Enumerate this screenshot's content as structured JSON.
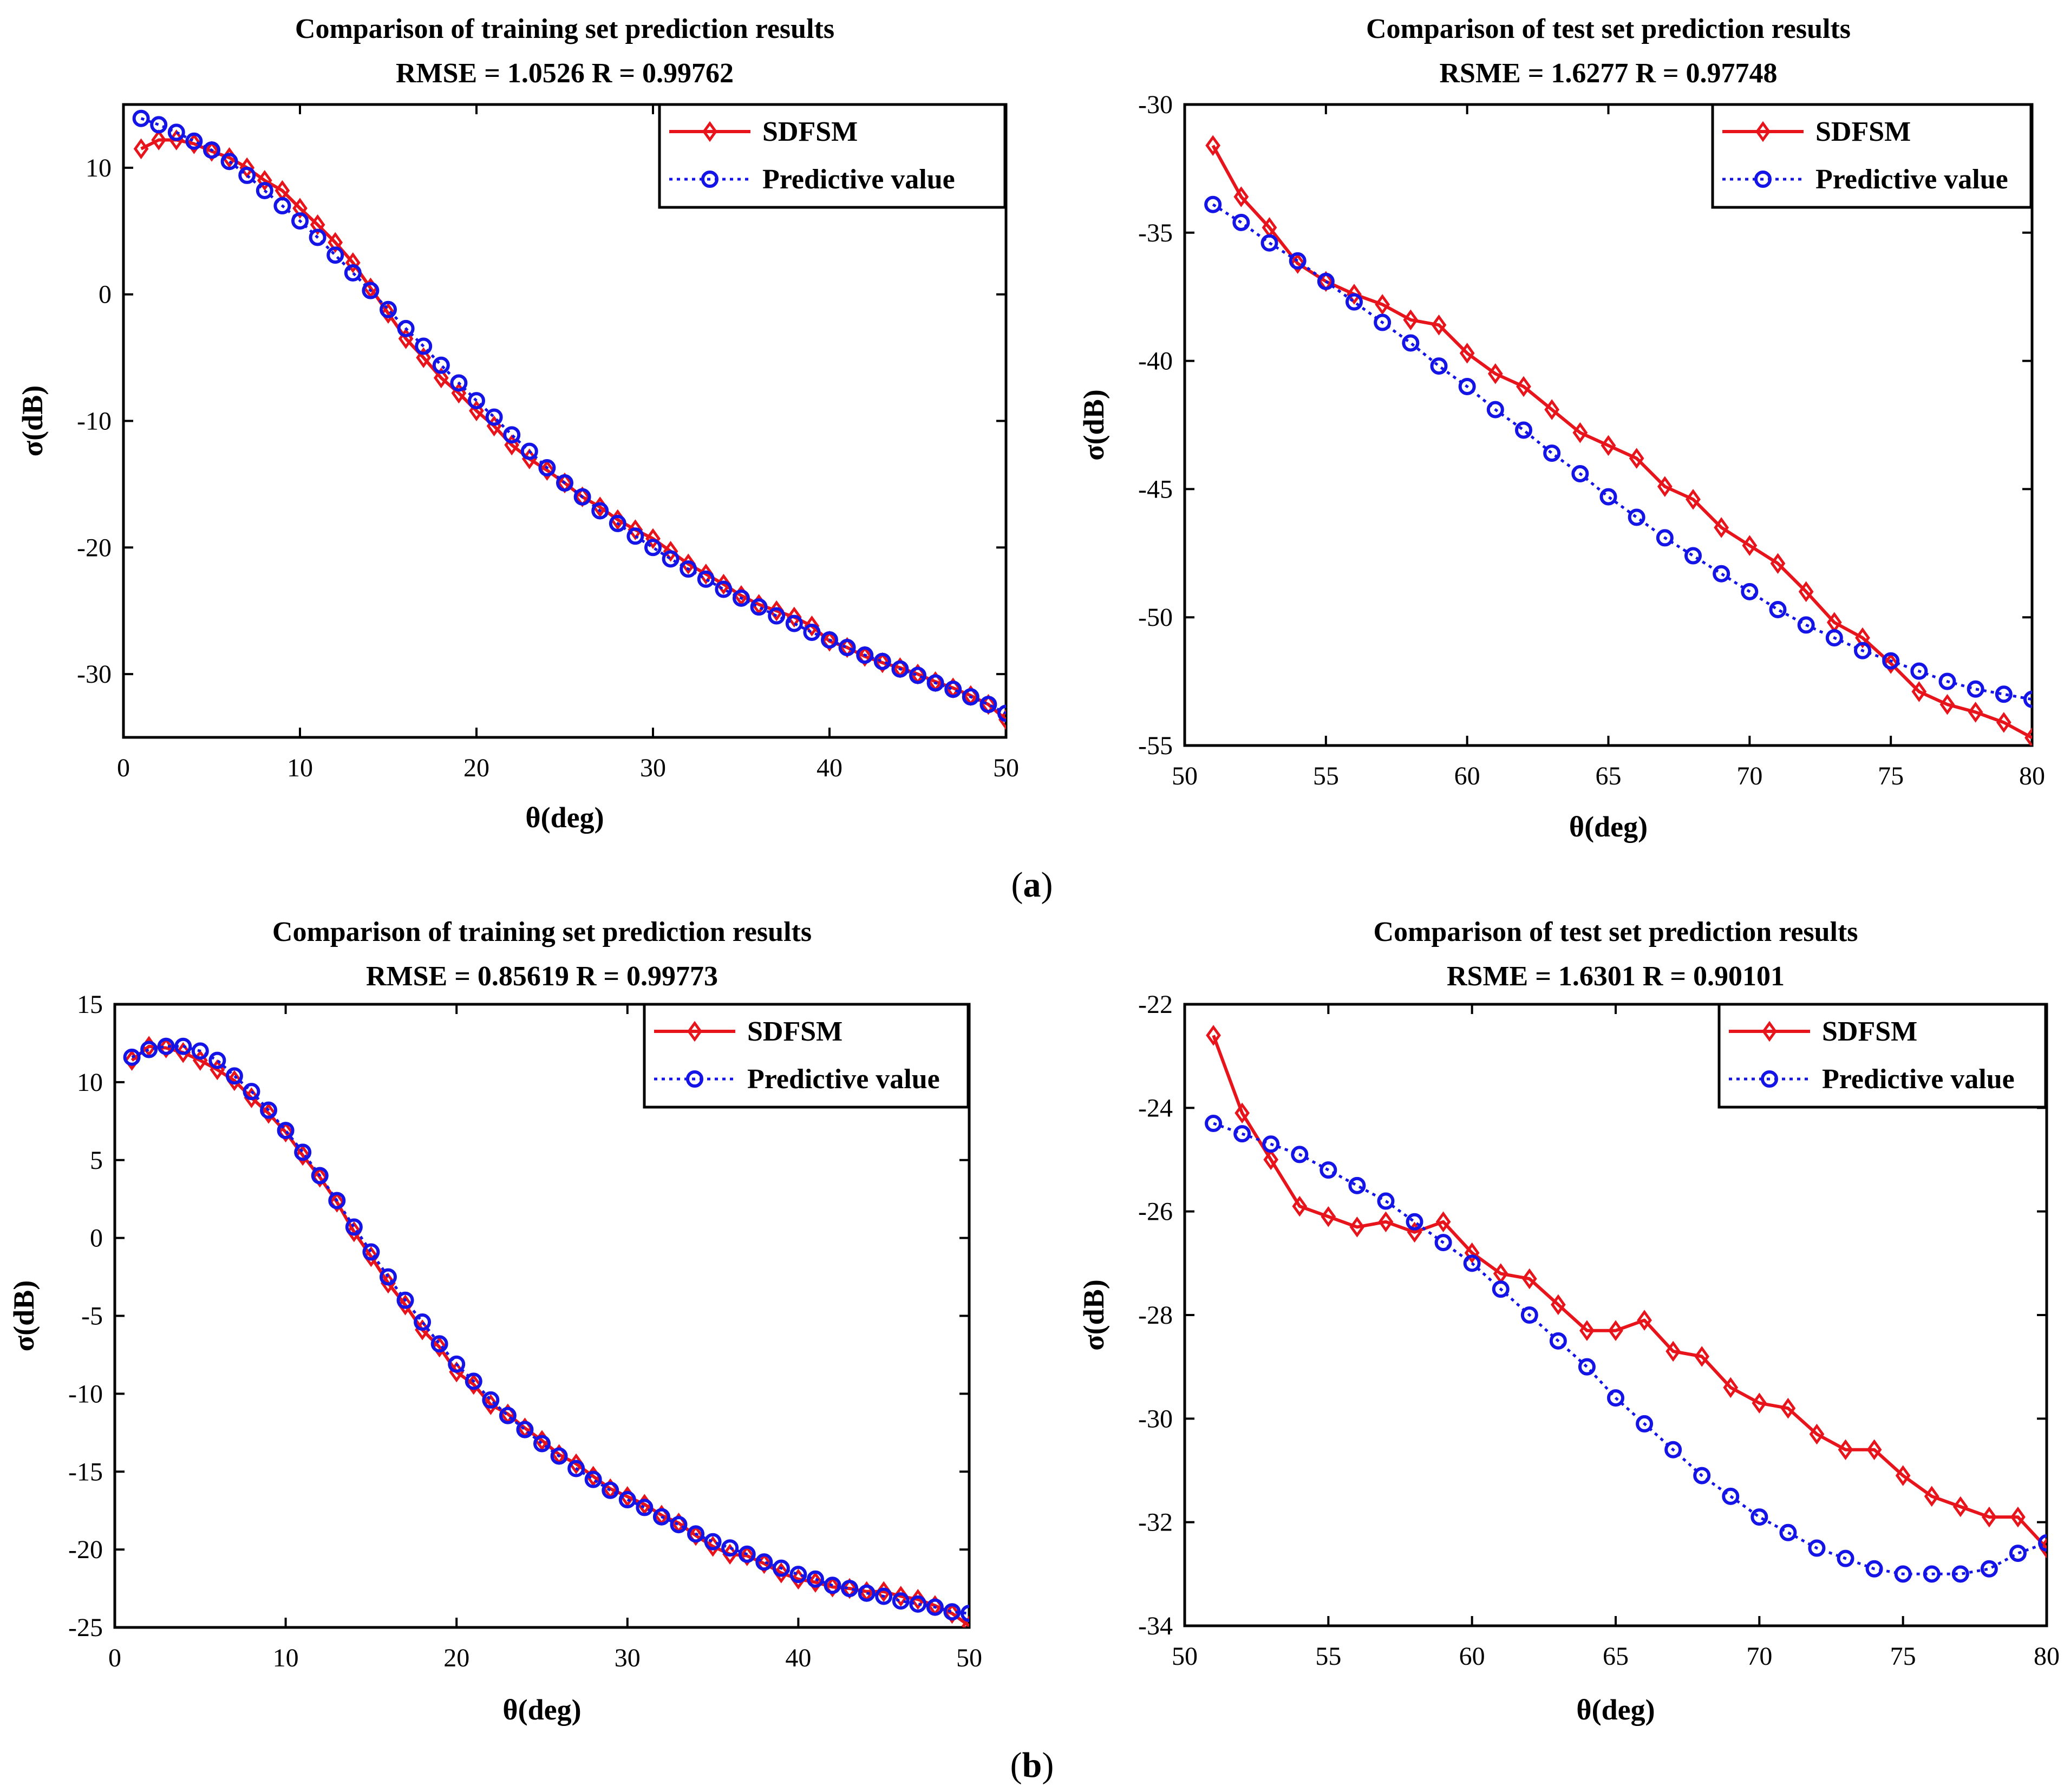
{
  "figure": {
    "captions": [
      {
        "open": "(",
        "letter": "a",
        "close": ")"
      },
      {
        "open": "(",
        "letter": "b",
        "close": ")"
      }
    ]
  },
  "colors": {
    "sdfsm": "#e8141c",
    "predictive": "#1414e6",
    "axis": "#000000"
  },
  "chart_data": [
    {
      "type": "line",
      "title": "Comparison of training set prediction results",
      "subtitle": "RMSE = 1.0526  R = 0.99762",
      "xlabel": "θ(deg)",
      "ylabel": "σ(dB)",
      "xlim": [
        0,
        50
      ],
      "ylim": [
        -35,
        15
      ],
      "xticks": [
        0,
        10,
        20,
        30,
        40,
        50
      ],
      "yticks": [
        -30,
        -20,
        -10,
        0,
        10
      ],
      "legend_position": "top-right",
      "x": [
        1,
        2,
        3,
        4,
        5,
        6,
        7,
        8,
        9,
        10,
        11,
        12,
        13,
        14,
        15,
        16,
        17,
        18,
        19,
        20,
        21,
        22,
        23,
        24,
        25,
        26,
        27,
        28,
        29,
        30,
        31,
        32,
        33,
        34,
        35,
        36,
        37,
        38,
        39,
        40,
        41,
        42,
        43,
        44,
        45,
        46,
        47,
        48,
        49,
        50
      ],
      "series": [
        {
          "name": "SDFSM",
          "marker": "diamond",
          "line": "solid",
          "values": [
            11.5,
            12.2,
            12.2,
            11.9,
            11.3,
            10.8,
            10.0,
            9.0,
            8.2,
            6.8,
            5.5,
            4.1,
            2.5,
            0.5,
            -1.5,
            -3.5,
            -5.0,
            -6.6,
            -7.8,
            -9.2,
            -10.4,
            -11.9,
            -13.0,
            -13.9,
            -14.9,
            -16.0,
            -16.8,
            -17.8,
            -18.6,
            -19.3,
            -20.3,
            -21.3,
            -22.1,
            -22.9,
            -23.8,
            -24.5,
            -25.0,
            -25.5,
            -26.2,
            -27.4,
            -27.9,
            -28.6,
            -29.1,
            -29.5,
            -30.0,
            -30.6,
            -31.1,
            -31.7,
            -32.4,
            -33.6
          ]
        },
        {
          "name": "Predictive value",
          "marker": "circle",
          "line": "dotted",
          "values": [
            13.9,
            13.4,
            12.8,
            12.1,
            11.4,
            10.5,
            9.4,
            8.2,
            7.0,
            5.8,
            4.5,
            3.1,
            1.7,
            0.3,
            -1.2,
            -2.7,
            -4.1,
            -5.6,
            -7.0,
            -8.4,
            -9.7,
            -11.1,
            -12.4,
            -13.7,
            -14.9,
            -16.0,
            -17.1,
            -18.1,
            -19.1,
            -20.0,
            -20.9,
            -21.7,
            -22.5,
            -23.3,
            -24.0,
            -24.7,
            -25.4,
            -26.0,
            -26.7,
            -27.3,
            -27.9,
            -28.5,
            -29.0,
            -29.6,
            -30.1,
            -30.7,
            -31.2,
            -31.8,
            -32.4,
            -33.1
          ]
        }
      ]
    },
    {
      "type": "line",
      "title": "Comparison of test set prediction results",
      "subtitle": "RSME = 1.6277  R = 0.97748",
      "xlabel": "θ(deg)",
      "ylabel": "σ(dB)",
      "xlim": [
        50,
        80
      ],
      "ylim": [
        -55,
        -30
      ],
      "xticks": [
        50,
        55,
        60,
        65,
        70,
        75,
        80
      ],
      "yticks": [
        -55,
        -50,
        -45,
        -40,
        -35,
        -30
      ],
      "legend_position": "top-right",
      "x": [
        51,
        52,
        53,
        54,
        55,
        56,
        57,
        58,
        59,
        60,
        61,
        62,
        63,
        64,
        65,
        66,
        67,
        68,
        69,
        70,
        71,
        72,
        73,
        74,
        75,
        76,
        77,
        78,
        79,
        80
      ],
      "series": [
        {
          "name": "SDFSM",
          "marker": "diamond",
          "line": "solid",
          "values": [
            -31.6,
            -33.6,
            -34.8,
            -36.2,
            -36.9,
            -37.4,
            -37.8,
            -38.4,
            -38.6,
            -39.7,
            -40.5,
            -41.0,
            -41.9,
            -42.8,
            -43.3,
            -43.8,
            -44.9,
            -45.4,
            -46.5,
            -47.2,
            -47.9,
            -49.0,
            -50.2,
            -50.8,
            -51.8,
            -52.9,
            -53.4,
            -53.7,
            -54.1,
            -54.7
          ]
        },
        {
          "name": "Predictive value",
          "marker": "circle",
          "line": "dotted",
          "values": [
            -33.9,
            -34.6,
            -35.4,
            -36.1,
            -36.9,
            -37.7,
            -38.5,
            -39.3,
            -40.2,
            -41.0,
            -41.9,
            -42.7,
            -43.6,
            -44.4,
            -45.3,
            -46.1,
            -46.9,
            -47.6,
            -48.3,
            -49.0,
            -49.7,
            -50.3,
            -50.8,
            -51.3,
            -51.7,
            -52.1,
            -52.5,
            -52.8,
            -53.0,
            -53.2
          ]
        }
      ]
    },
    {
      "type": "line",
      "title": "Comparison of training set prediction results",
      "subtitle": "RMSE = 0.85619  R = 0.99773",
      "xlabel": "θ(deg)",
      "ylabel": "σ(dB)",
      "xlim": [
        0,
        50
      ],
      "ylim": [
        -25,
        15
      ],
      "xticks": [
        0,
        10,
        20,
        30,
        40,
        50
      ],
      "yticks": [
        -25,
        -20,
        -15,
        -10,
        -5,
        0,
        5,
        10,
        15
      ],
      "legend_position": "top-right",
      "x": [
        1,
        2,
        3,
        4,
        5,
        6,
        7,
        8,
        9,
        10,
        11,
        12,
        13,
        14,
        15,
        16,
        17,
        18,
        19,
        20,
        21,
        22,
        23,
        24,
        25,
        26,
        27,
        28,
        29,
        30,
        31,
        32,
        33,
        34,
        35,
        36,
        37,
        38,
        39,
        40,
        41,
        42,
        43,
        44,
        45,
        46,
        47,
        48,
        49,
        50
      ],
      "series": [
        {
          "name": "SDFSM",
          "marker": "diamond",
          "line": "solid",
          "values": [
            11.4,
            12.3,
            12.2,
            11.9,
            11.4,
            10.8,
            10.1,
            9.0,
            8.0,
            6.8,
            5.3,
            3.9,
            2.3,
            0.4,
            -1.2,
            -2.9,
            -4.3,
            -5.9,
            -7.0,
            -8.6,
            -9.4,
            -10.7,
            -11.3,
            -12.2,
            -13.0,
            -13.9,
            -14.5,
            -15.3,
            -16.1,
            -16.6,
            -17.1,
            -17.8,
            -18.3,
            -19.1,
            -19.8,
            -20.3,
            -20.4,
            -20.9,
            -21.5,
            -21.9,
            -22.1,
            -22.4,
            -22.5,
            -22.7,
            -22.7,
            -23.0,
            -23.2,
            -23.6,
            -24.1,
            -24.9
          ]
        },
        {
          "name": "Predictive value",
          "marker": "circle",
          "line": "dotted",
          "values": [
            11.6,
            12.1,
            12.3,
            12.3,
            12.0,
            11.4,
            10.4,
            9.4,
            8.2,
            6.9,
            5.5,
            4.0,
            2.4,
            0.7,
            -0.9,
            -2.5,
            -4.0,
            -5.4,
            -6.8,
            -8.1,
            -9.2,
            -10.4,
            -11.4,
            -12.3,
            -13.2,
            -14.0,
            -14.8,
            -15.5,
            -16.2,
            -16.8,
            -17.3,
            -17.9,
            -18.4,
            -19.0,
            -19.5,
            -19.9,
            -20.3,
            -20.8,
            -21.2,
            -21.6,
            -21.9,
            -22.3,
            -22.5,
            -22.8,
            -23.0,
            -23.3,
            -23.5,
            -23.7,
            -24.0,
            -24.1
          ]
        }
      ]
    },
    {
      "type": "line",
      "title": "Comparison of test set prediction results",
      "subtitle": "RSME = 1.6301  R = 0.90101",
      "xlabel": "θ(deg)",
      "ylabel": "σ(dB)",
      "xlim": [
        50,
        80
      ],
      "ylim": [
        -34,
        -22
      ],
      "xticks": [
        50,
        55,
        60,
        65,
        70,
        75,
        80
      ],
      "yticks": [
        -34,
        -32,
        -30,
        -28,
        -26,
        -24,
        -22
      ],
      "legend_position": "top-right",
      "x": [
        51,
        52,
        53,
        54,
        55,
        56,
        57,
        58,
        59,
        60,
        61,
        62,
        63,
        64,
        65,
        66,
        67,
        68,
        69,
        70,
        71,
        72,
        73,
        74,
        75,
        76,
        77,
        78,
        79,
        80
      ],
      "series": [
        {
          "name": "SDFSM",
          "marker": "diamond",
          "line": "solid",
          "values": [
            -22.6,
            -24.1,
            -25.0,
            -25.9,
            -26.1,
            -26.3,
            -26.2,
            -26.4,
            -26.2,
            -26.8,
            -27.2,
            -27.3,
            -27.8,
            -28.3,
            -28.3,
            -28.1,
            -28.7,
            -28.8,
            -29.4,
            -29.7,
            -29.8,
            -30.3,
            -30.6,
            -30.6,
            -31.1,
            -31.5,
            -31.7,
            -31.9,
            -31.9,
            -32.5
          ]
        },
        {
          "name": "Predictive value",
          "marker": "circle",
          "line": "dotted",
          "values": [
            -24.3,
            -24.5,
            -24.7,
            -24.9,
            -25.2,
            -25.5,
            -25.8,
            -26.2,
            -26.6,
            -27.0,
            -27.5,
            -28.0,
            -28.5,
            -29.0,
            -29.6,
            -30.1,
            -30.6,
            -31.1,
            -31.5,
            -31.9,
            -32.2,
            -32.5,
            -32.7,
            -32.9,
            -33.0,
            -33.0,
            -33.0,
            -32.9,
            -32.6,
            -32.4
          ]
        }
      ]
    }
  ]
}
